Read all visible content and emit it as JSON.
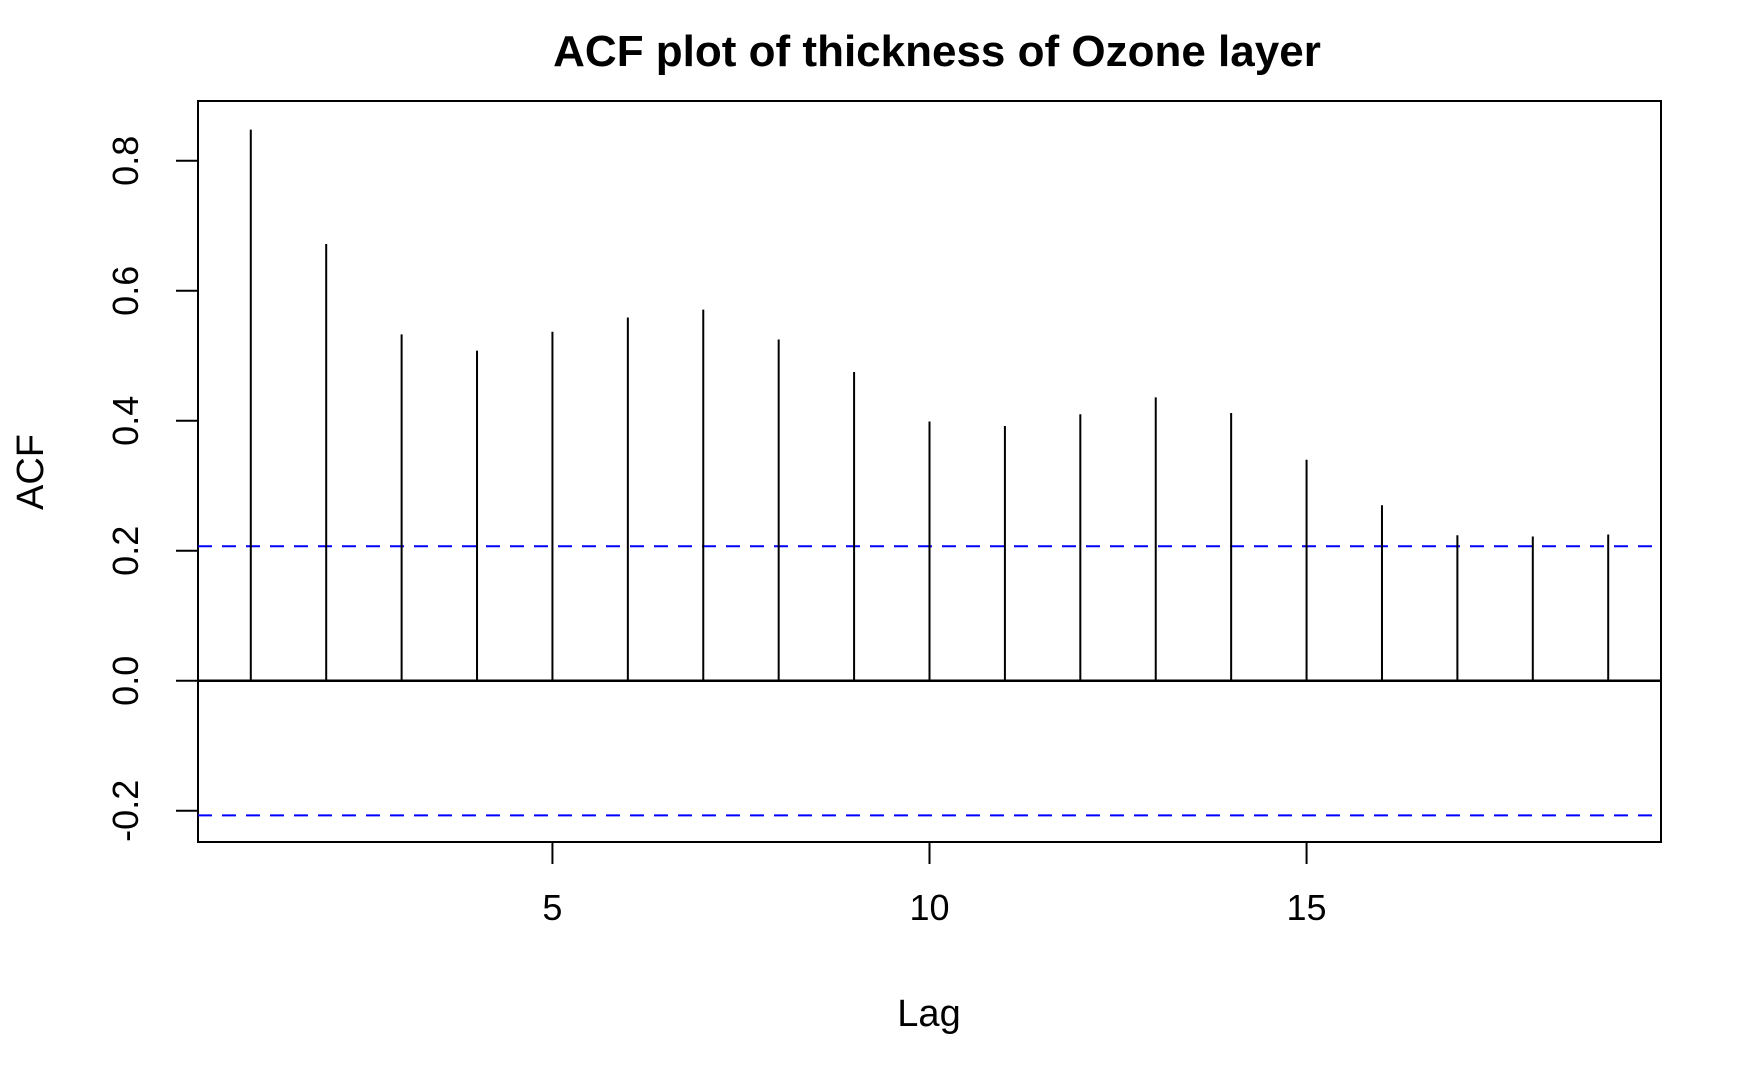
{
  "chart_data": {
    "type": "bar",
    "title": "ACF plot of thickness of Ozone layer",
    "xlabel": "Lag",
    "ylabel": "ACF",
    "x": [
      1,
      2,
      3,
      4,
      5,
      6,
      7,
      8,
      9,
      10,
      11,
      12,
      13,
      14,
      15,
      16,
      17,
      18,
      19
    ],
    "values": [
      0.848,
      0.672,
      0.533,
      0.508,
      0.537,
      0.559,
      0.571,
      0.525,
      0.475,
      0.399,
      0.392,
      0.41,
      0.436,
      0.412,
      0.34,
      0.27,
      0.224,
      0.222,
      0.225
    ],
    "xlim": [
      0.3,
      19.7
    ],
    "ylim": [
      -0.248,
      0.892
    ],
    "x_ticks": [
      5,
      10,
      15
    ],
    "x_tick_labels": [
      "5",
      "10",
      "15"
    ],
    "y_ticks": [
      -0.2,
      0.0,
      0.2,
      0.4,
      0.6,
      0.8
    ],
    "y_tick_labels": [
      "-0.2",
      "0.0",
      "0.2",
      "0.4",
      "0.6",
      "0.8"
    ],
    "confidence_bounds": [
      0.207,
      -0.207
    ],
    "colors": {
      "spike": "#000000",
      "bound": "#0000ff",
      "frame": "#000000"
    },
    "grid": false
  }
}
